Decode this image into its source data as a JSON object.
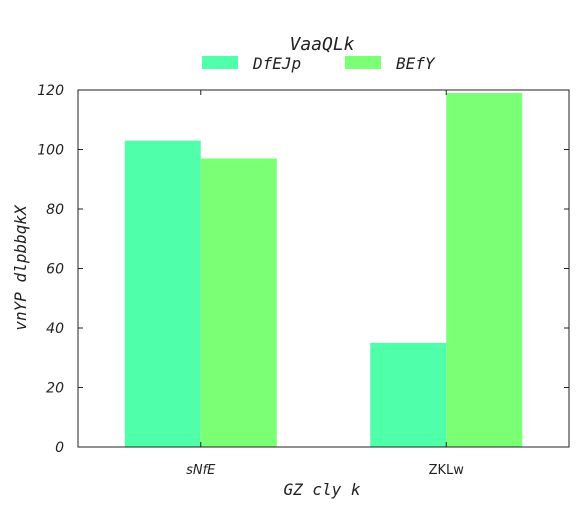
{
  "chart_data": {
    "type": "bar",
    "title": "VaaQLk",
    "xlabel": "GZ cly k",
    "ylabel": "vnYP dlpbbqkX",
    "categories": [
      "sNfE",
      "ZKLw"
    ],
    "category_label_styles": [
      "italic",
      "normal"
    ],
    "series": [
      {
        "name": "DfEJp",
        "color": "#50ffaa",
        "values": [
          103,
          35
        ]
      },
      {
        "name": "BEfY",
        "color": "#7aff75",
        "values": [
          97,
          119
        ]
      }
    ],
    "ylim": [
      0,
      120
    ],
    "yticks": [
      0,
      20,
      40,
      60,
      80,
      100,
      120
    ],
    "grid": false,
    "legend_position": "top-center"
  }
}
